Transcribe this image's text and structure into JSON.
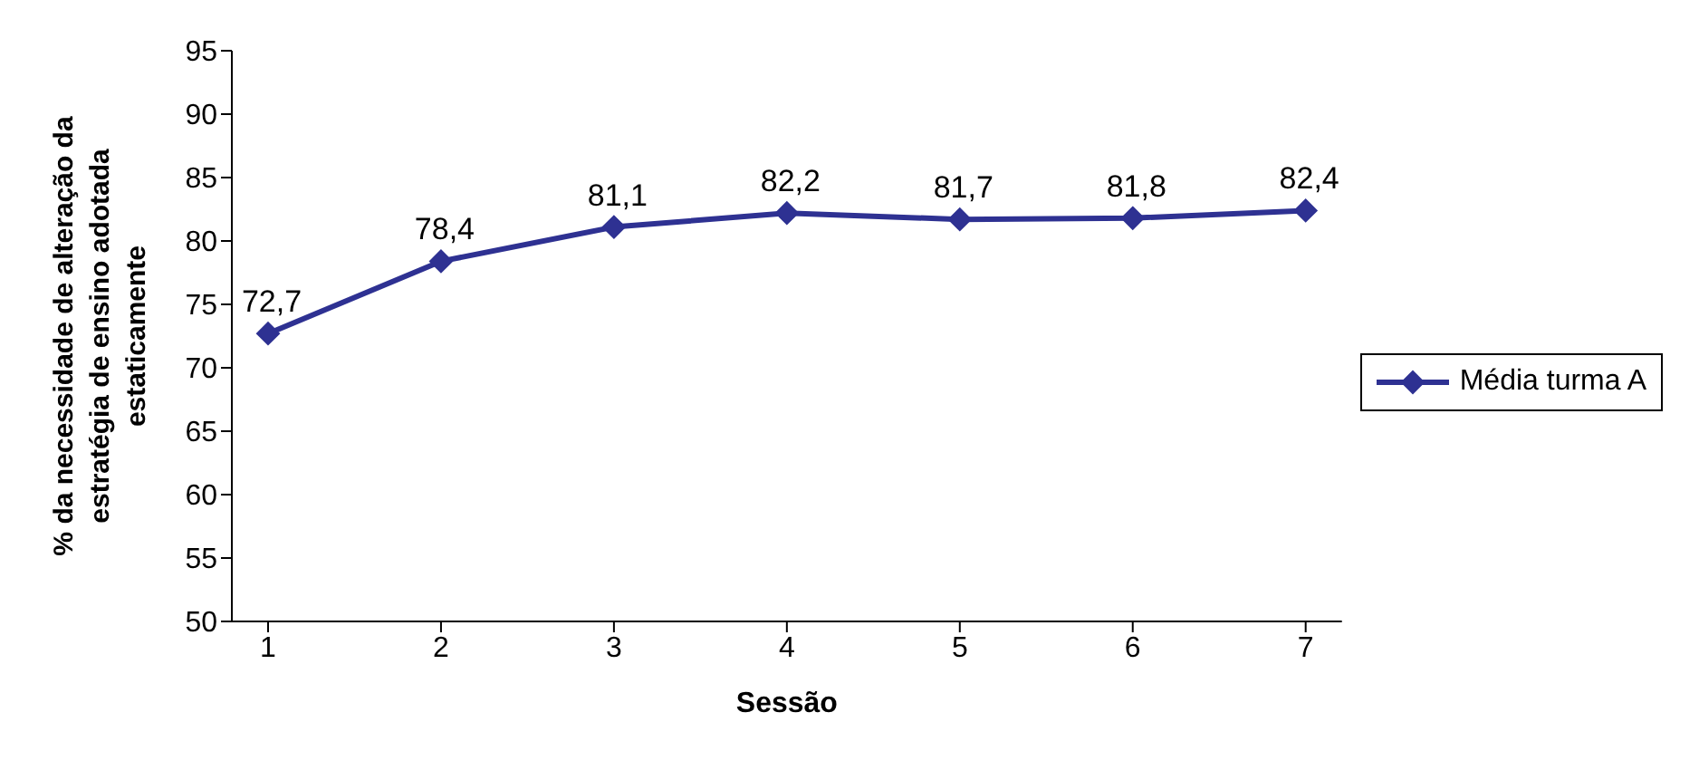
{
  "chart_data": {
    "type": "line",
    "xlabel": "Sessão",
    "ylabel": "% da necessidade de alteração da estratégia de ensino adotada estaticamente",
    "categories": [
      "1",
      "2",
      "3",
      "4",
      "5",
      "6",
      "7"
    ],
    "series": [
      {
        "name": "Média turma A",
        "color": "#2e3192",
        "values": [
          72.7,
          78.4,
          81.1,
          82.2,
          81.7,
          81.8,
          82.4
        ],
        "value_labels": [
          "72,7",
          "78,4",
          "81,1",
          "82,2",
          "81,7",
          "81,8",
          "82,4"
        ]
      }
    ],
    "ylim": [
      50,
      95
    ],
    "yticks": [
      50,
      55,
      60,
      65,
      70,
      75,
      80,
      85,
      90,
      95
    ],
    "grid": false,
    "legend": "right",
    "marker": "diamond",
    "line_style": "solid"
  }
}
